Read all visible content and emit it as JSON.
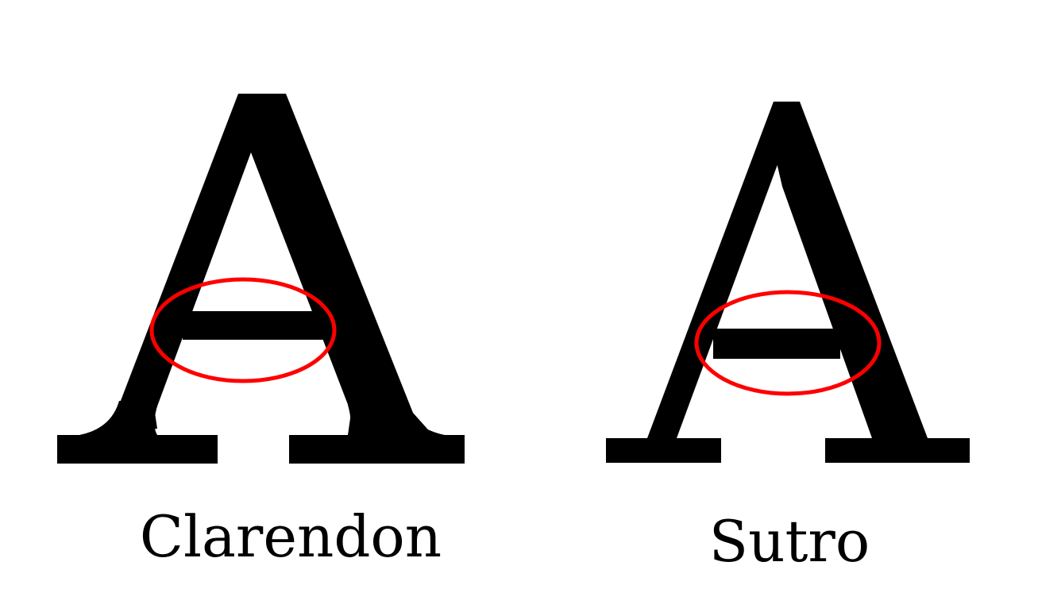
{
  "colors": {
    "glyph": "#000000",
    "highlight": "#ff0000",
    "background": "#ffffff"
  },
  "specimens": [
    {
      "letter": "A",
      "caption": "Clarendon"
    },
    {
      "letter": "A",
      "caption": "Sutro"
    }
  ]
}
